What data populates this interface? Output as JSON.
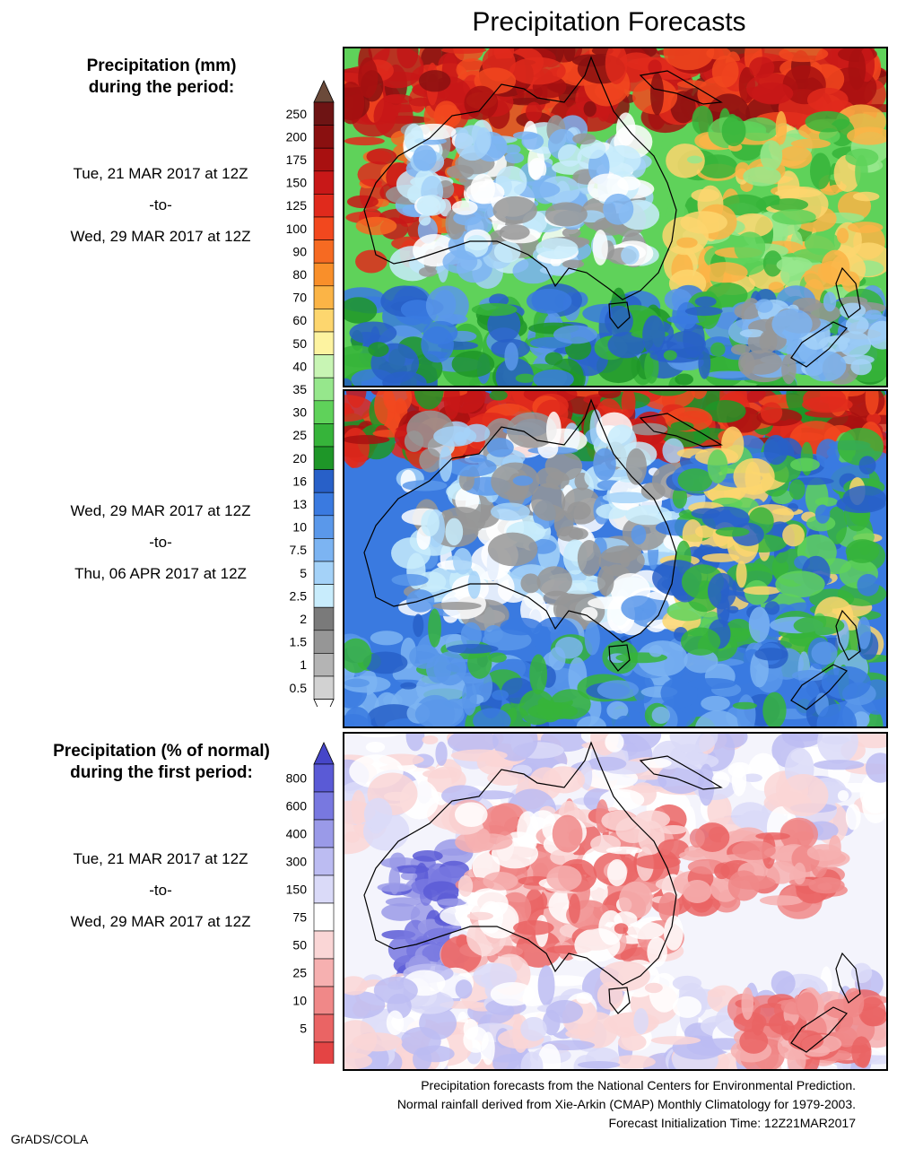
{
  "title": "Precipitation Forecasts",
  "legend_mm": {
    "heading": [
      "Precipitation (mm)",
      "during the period:"
    ],
    "ticks": [
      "250",
      "200",
      "175",
      "150",
      "125",
      "100",
      "90",
      "80",
      "70",
      "60",
      "50",
      "40",
      "35",
      "30",
      "25",
      "20",
      "16",
      "13",
      "10",
      "7.5",
      "5",
      "2.5",
      "2",
      "1.5",
      "1",
      "0.5"
    ],
    "colors": [
      "#6e1414",
      "#8a1010",
      "#a81010",
      "#c81818",
      "#e02a1c",
      "#f2481e",
      "#f66a22",
      "#f98f2a",
      "#fbb446",
      "#fdd66e",
      "#fdf3a0",
      "#c8f5b4",
      "#96e78c",
      "#5fd25a",
      "#36b43a",
      "#1e9628",
      "#2860c8",
      "#3a7ae0",
      "#5a98ea",
      "#7cb4f2",
      "#a4d2f8",
      "#c8ecfc",
      "#7a7a7a",
      "#969696",
      "#b4b4b4",
      "#d2d2d2"
    ],
    "top_color": "#6b4a3a",
    "bottom_color": "#ffffff"
  },
  "legend_pct": {
    "heading": [
      "Precipitation (% of normal)",
      "during the first period:"
    ],
    "ticks": [
      "800",
      "600",
      "400",
      "300",
      "150",
      "75",
      "50",
      "25",
      "10",
      "5"
    ],
    "colors": [
      "#5a5ad6",
      "#7878e0",
      "#9a9ae8",
      "#bcbcf2",
      "#dadaf8",
      "#ffffff",
      "#fad6d6",
      "#f6b0b0",
      "#f08888",
      "#ea6464",
      "#e44444"
    ],
    "top_color": "#4646c8",
    "bottom_color": "#e03030"
  },
  "periods": [
    {
      "start": "Tue, 21 MAR 2017 at 12Z",
      "sep": "-to-",
      "end": "Wed, 29 MAR 2017 at 12Z"
    },
    {
      "start": "Wed, 29 MAR 2017 at 12Z",
      "sep": "-to-",
      "end": "Thu, 06 APR 2017 at 12Z"
    },
    {
      "start": "Tue, 21 MAR 2017 at 12Z",
      "sep": "-to-",
      "end": "Wed, 29 MAR 2017 at 12Z"
    }
  ],
  "footer": [
    "Precipitation forecasts from the National Centers for Environmental Prediction.",
    "Normal rainfall derived from Xie-Arkin (CMAP) Monthly Climatology for 1979-2003.",
    "Forecast Initialization Time: 12Z21MAR2017"
  ],
  "credit": "GrADS/COLA",
  "chart_data": [
    {
      "type": "heatmap",
      "title": "Precipitation Forecasts",
      "description_units": "mm",
      "colorbar_levels": [
        0.5,
        1,
        1.5,
        2,
        2.5,
        5,
        7.5,
        10,
        13,
        16,
        20,
        25,
        30,
        35,
        40,
        50,
        60,
        70,
        80,
        90,
        100,
        125,
        150,
        175,
        200,
        250
      ],
      "period": "Tue, 21 MAR 2017 at 12Z -to- Wed, 29 MAR 2017 at 12Z"
    },
    {
      "type": "heatmap",
      "description_units": "mm",
      "colorbar_levels": [
        0.5,
        1,
        1.5,
        2,
        2.5,
        5,
        7.5,
        10,
        13,
        16,
        20,
        25,
        30,
        35,
        40,
        50,
        60,
        70,
        80,
        90,
        100,
        125,
        150,
        175,
        200,
        250
      ],
      "period": "Wed, 29 MAR 2017 at 12Z -to- Thu, 06 APR 2017 at 12Z"
    },
    {
      "type": "heatmap",
      "description_units": "% of normal",
      "colorbar_levels": [
        5,
        10,
        25,
        50,
        75,
        150,
        300,
        400,
        600,
        800
      ],
      "period": "Tue, 21 MAR 2017 at 12Z -to- Wed, 29 MAR 2017 at 12Z"
    }
  ]
}
